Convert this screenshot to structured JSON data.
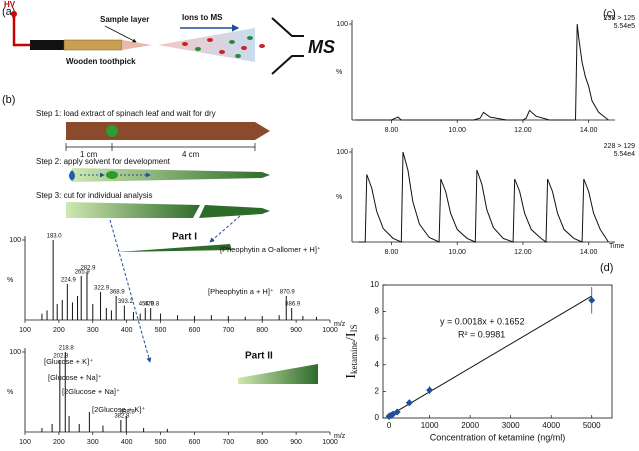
{
  "panel_labels": [
    "(a)",
    "(b)",
    "(c)",
    "(d)"
  ],
  "diagram": {
    "hv": "HV",
    "sample_layer": "Sample layer",
    "ions": "Ions to MS",
    "toothpick": "Wooden toothpick",
    "ms": "MS"
  },
  "protocol": {
    "step1": "Step 1: load extract of spinach leaf and wait for dry",
    "cm1": "1 cm",
    "cm4": "4 cm",
    "step2": "Step 2: apply solvent for development",
    "step3": "Step 3: cut for individual analysis",
    "part1": "Part I",
    "part2": "Part II"
  },
  "chart_data": [
    {
      "type": "spectrum",
      "xlabel": "m/z",
      "ylabel": "%",
      "xlim": [
        100,
        1000
      ],
      "ylim": [
        0,
        100
      ],
      "xticks": [
        100,
        200,
        300,
        400,
        500,
        600,
        700,
        800,
        900,
        1000
      ],
      "yticks": [
        100
      ],
      "color": "#111111",
      "x": [
        150,
        165,
        183.0,
        195,
        210,
        224.9,
        240,
        255,
        265.9,
        282.9,
        300,
        322.9,
        340,
        355,
        368.9,
        393.2,
        420,
        440,
        454.9,
        470.8,
        500,
        550,
        600,
        650,
        700,
        750,
        800,
        850,
        870.9,
        886.9,
        920,
        960
      ],
      "values": [
        8,
        12,
        100,
        20,
        25,
        45,
        22,
        30,
        55,
        60,
        20,
        35,
        15,
        12,
        30,
        18,
        10,
        8,
        15,
        15,
        8,
        6,
        5,
        6,
        5,
        4,
        5,
        6,
        30,
        15,
        5,
        4
      ],
      "peak_labels": [
        null,
        null,
        "183.0",
        null,
        null,
        "224.9",
        null,
        null,
        "265.9",
        "282.9",
        null,
        "322.9",
        null,
        null,
        "368.9",
        "393.2",
        null,
        null,
        "454.9",
        "470.8",
        null,
        null,
        null,
        null,
        null,
        null,
        null,
        null,
        "870.9",
        "886.9",
        null,
        null
      ],
      "annotations": [
        "[Pheophytin a O-allomer + H]⁺",
        "[Pheophytin a + H]⁺"
      ]
    },
    {
      "type": "spectrum",
      "xlabel": "m/z",
      "ylabel": "%",
      "xlim": [
        100,
        1000
      ],
      "ylim": [
        0,
        100
      ],
      "xticks": [
        100,
        200,
        300,
        400,
        500,
        600,
        700,
        800,
        900,
        1000
      ],
      "yticks": [
        100
      ],
      "color": "#111111",
      "x": [
        150,
        180,
        202.8,
        218.8,
        230,
        260,
        290,
        330,
        382.8,
        398.8,
        450,
        520
      ],
      "values": [
        5,
        10,
        90,
        100,
        20,
        10,
        25,
        8,
        15,
        20,
        5,
        4
      ],
      "peak_labels": [
        null,
        null,
        "202.8",
        "218.8",
        null,
        null,
        null,
        null,
        "382.8",
        "398.8",
        null,
        null
      ],
      "annotations": [
        "[Glucose + K]⁺",
        "[Glucose + Na]⁺",
        "[2Glucose + Na]⁺",
        "[2Glucose + K]⁺"
      ]
    },
    {
      "type": "line",
      "ylabel": "%",
      "channel": "238 > 125",
      "intensity": "5.54e5",
      "color": "#111111",
      "xlim": [
        6.8,
        14.8
      ],
      "ylim": [
        0,
        100
      ],
      "xticks": [
        {
          "value": 8,
          "label": "8.00"
        },
        {
          "value": 10,
          "label": "10.00"
        },
        {
          "value": 12,
          "label": "12.00"
        },
        {
          "value": 14,
          "label": "14.00"
        }
      ],
      "yticks": [
        100
      ],
      "x": [
        6.9,
        7.5,
        8.0,
        8.2,
        8.3,
        8.5,
        9.0,
        9.5,
        10.0,
        10.5,
        10.7,
        10.8,
        11.0,
        11.5,
        12.0,
        12.1,
        12.2,
        12.4,
        12.8,
        13.2,
        13.6,
        13.65,
        13.7,
        13.8,
        13.9,
        14.0,
        14.1,
        14.3,
        14.6
      ],
      "values": [
        0,
        0,
        0,
        3,
        0,
        0,
        0,
        0,
        0,
        0,
        2,
        8,
        3,
        0,
        0,
        2,
        10,
        4,
        0,
        0,
        0,
        100,
        85,
        60,
        45,
        35,
        20,
        8,
        0
      ]
    },
    {
      "type": "line",
      "ylabel": "%",
      "xlabel": "Time",
      "channel": "228 > 129",
      "intensity": "5.54e4",
      "color": "#111111",
      "xlim": [
        6.8,
        14.8
      ],
      "ylim": [
        0,
        100
      ],
      "xticks": [
        {
          "value": 8,
          "label": "8.00"
        },
        {
          "value": 10,
          "label": "10.00"
        },
        {
          "value": 12,
          "label": "12.00"
        },
        {
          "value": 14,
          "label": "14.00"
        }
      ],
      "yticks": [
        100
      ],
      "x": [
        7.0,
        7.2,
        7.25,
        7.4,
        7.55,
        7.75,
        8.05,
        8.3,
        8.35,
        8.5,
        8.65,
        8.85,
        9.15,
        9.45,
        9.5,
        9.65,
        9.8,
        10.0,
        10.3,
        10.55,
        10.6,
        10.75,
        10.9,
        11.1,
        11.4,
        11.7,
        11.75,
        11.9,
        12.05,
        12.25,
        12.55,
        12.7,
        12.75,
        12.9,
        13.05,
        13.25,
        13.55,
        13.8,
        13.85,
        14.0,
        14.15,
        14.35,
        14.6
      ],
      "values": [
        0,
        0,
        75,
        60,
        34,
        15,
        4,
        0,
        100,
        80,
        45,
        20,
        5,
        0,
        70,
        56,
        32,
        14,
        4,
        0,
        80,
        64,
        36,
        16,
        4,
        0,
        70,
        56,
        32,
        14,
        4,
        0,
        70,
        56,
        32,
        14,
        4,
        0,
        70,
        56,
        32,
        14,
        0
      ]
    },
    {
      "type": "scatter",
      "xlabel": "Concentration of ketamine (ng/ml)",
      "ylabel_parts": [
        "I",
        "ketamine",
        "/I",
        "IS"
      ],
      "color": "#1f4e9a",
      "line_color": "#111111",
      "xlim": [
        -150,
        5500
      ],
      "ylim": [
        0,
        10
      ],
      "xticks": [
        0,
        1000,
        2000,
        3000,
        4000,
        5000
      ],
      "yticks": [
        0,
        2,
        4,
        6,
        8,
        10
      ],
      "x": [
        0,
        10,
        50,
        100,
        200,
        500,
        1000,
        5000
      ],
      "values": [
        0.12,
        0.15,
        0.2,
        0.3,
        0.45,
        1.15,
        2.1,
        8.85
      ],
      "error": [
        0.05,
        0.05,
        0.05,
        0.1,
        0.1,
        0.25,
        0.3,
        1.0
      ],
      "fit": {
        "slope": 0.0018,
        "intercept": 0.1652,
        "label": "y = 0.0018x + 0.1652"
      },
      "r2_label": "R² = 0.9981"
    }
  ]
}
